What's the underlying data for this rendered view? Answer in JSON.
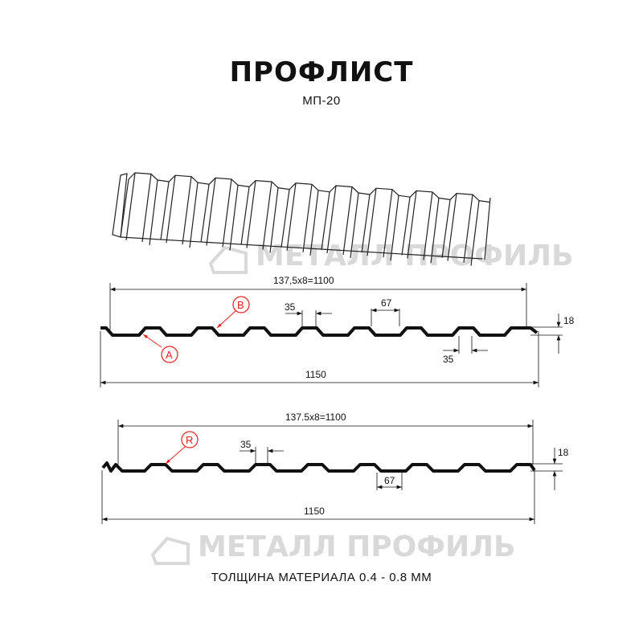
{
  "title": "ПРОФЛИСТ",
  "subtitle": "МП-20",
  "footer": "ТОЛЩИНА МАТЕРИАЛА 0.4 - 0.8 ММ",
  "watermark": "МЕТАЛЛ ПРОФИЛЬ",
  "colors": {
    "profile": "#111111",
    "callout": "#e4201e",
    "watermark": "#d9d9d9"
  },
  "profile1": {
    "span_label": "137,5x8=1100",
    "rib_top_label": "35",
    "pitch_label": "67",
    "height_label": "18",
    "bottom_label": "35",
    "width_label": "1150",
    "callouts": [
      "A",
      "B"
    ]
  },
  "profile2": {
    "span_label": "137.5x8=1100",
    "rib_top_label": "35",
    "height_label": "18",
    "pitch_label": "67",
    "width_label": "1150",
    "callouts": [
      "R"
    ]
  }
}
